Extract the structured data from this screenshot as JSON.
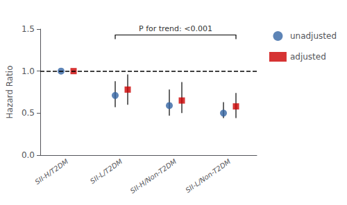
{
  "chart_data": {
    "type": "scatter",
    "categories": [
      "SII-H/T2DM",
      "SII-L/T2DM",
      "SII-H/Non-T2DM",
      "SII-L/Non-T2DM"
    ],
    "series": [
      {
        "name": "unadjusted",
        "color": "#3465a4",
        "marker": "circle",
        "values": [
          1.0,
          0.71,
          0.59,
          0.5
        ],
        "low": [
          1.0,
          0.57,
          0.47,
          0.44
        ],
        "high": [
          1.0,
          0.88,
          0.78,
          0.63
        ]
      },
      {
        "name": "adjusted",
        "color": "#cc0000",
        "marker": "square",
        "values": [
          1.0,
          0.78,
          0.65,
          0.58
        ],
        "low": [
          1.0,
          0.6,
          0.5,
          0.44
        ],
        "high": [
          1.0,
          0.96,
          0.87,
          0.74
        ]
      }
    ],
    "ylabel": "Hazard Ratio",
    "ylim": [
      0.0,
      1.5
    ],
    "yticks": [
      {
        "value": 0.0,
        "label": "0.0"
      },
      0.5,
      {
        "value": 1.0,
        "label": "1.0"
      },
      1.5
    ],
    "reference_lines": [
      {
        "y": 1.0,
        "line_style": "dashed"
      }
    ],
    "annotations": [
      {
        "text": "P for trend: <0.001",
        "from": "SII-L/T2DM",
        "to": "SII-L/Non-T2DM",
        "y": 1.43,
        "drop": 1.38
      }
    ],
    "legend": "right",
    "grid": false
  }
}
